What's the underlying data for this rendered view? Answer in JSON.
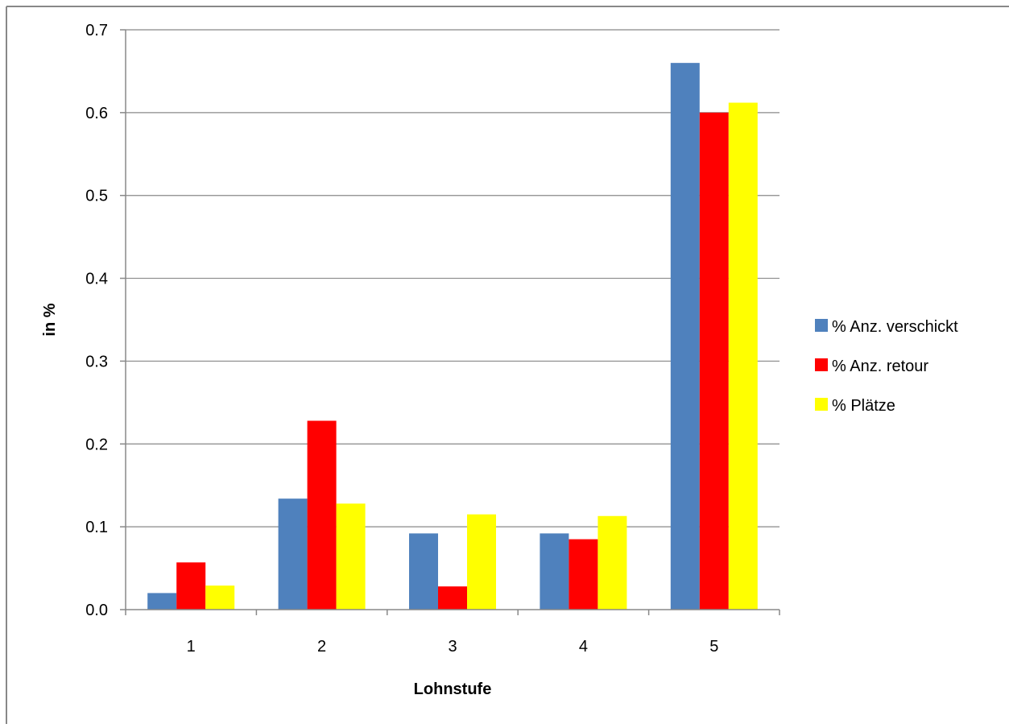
{
  "chart_data": {
    "type": "bar",
    "title": "",
    "xlabel": "Lohnstufe",
    "ylabel": "in %",
    "categories": [
      "1",
      "2",
      "3",
      "4",
      "5"
    ],
    "series": [
      {
        "name": "% Anz. verschickt",
        "color": "#4F81BD",
        "values": [
          0.02,
          0.134,
          0.092,
          0.092,
          0.66
        ]
      },
      {
        "name": "% Anz. retour",
        "color": "#FF0000",
        "values": [
          0.057,
          0.228,
          0.028,
          0.085,
          0.6
        ]
      },
      {
        "name": "% Plätze",
        "color": "#FFFF00",
        "values": [
          0.029,
          0.128,
          0.115,
          0.113,
          0.612
        ]
      }
    ],
    "ylim": [
      0,
      0.7
    ],
    "yticks": [
      "0.0",
      "0.1",
      "0.2",
      "0.3",
      "0.4",
      "0.5",
      "0.6",
      "0.7"
    ],
    "grid": true,
    "legend_position": "right"
  }
}
